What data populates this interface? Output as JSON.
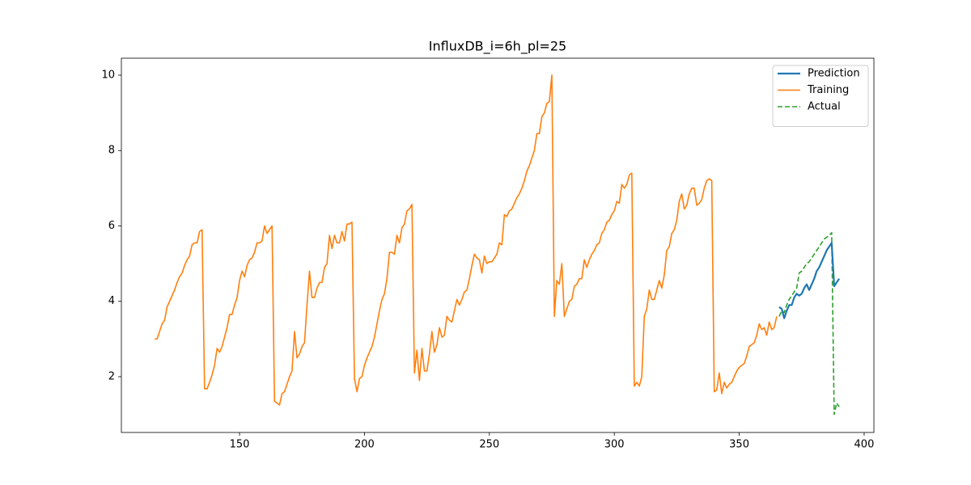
{
  "chart_data": {
    "type": "line",
    "title": "InfluxDB_i=6h_pl=25",
    "xlim": [
      102.7,
      403.9
    ],
    "ylim": [
      0.52,
      10.45
    ],
    "xticks": [
      150,
      200,
      250,
      300,
      350,
      400
    ],
    "yticks": [
      2,
      4,
      6,
      8,
      10
    ],
    "grid": false,
    "legend": "upper right",
    "series": [
      {
        "name": "Prediction",
        "color": "#1f77b4",
        "linestyle": "solid",
        "linewidth": 2.2,
        "x": [
          366,
          367,
          368,
          369,
          370,
          371,
          372,
          373,
          374,
          375,
          376,
          377,
          378,
          379,
          380,
          381,
          382,
          383,
          384,
          385,
          386,
          387,
          388,
          389,
          390
        ],
        "values": [
          3.85,
          3.8,
          3.55,
          3.75,
          3.9,
          3.9,
          4.1,
          4.2,
          4.15,
          4.2,
          4.35,
          4.45,
          4.3,
          4.45,
          4.6,
          4.8,
          4.9,
          5.05,
          5.2,
          5.35,
          5.45,
          5.55,
          4.4,
          4.5,
          4.6
        ]
      },
      {
        "name": "Training",
        "color": "#ff7f0e",
        "linestyle": "solid",
        "linewidth": 1.6,
        "x": [
          116,
          117,
          118,
          119,
          120,
          121,
          122,
          123,
          124,
          125,
          126,
          127,
          128,
          129,
          130,
          131,
          132,
          133,
          134,
          135,
          136,
          137,
          138,
          139,
          140,
          141,
          142,
          143,
          144,
          145,
          146,
          147,
          148,
          149,
          150,
          151,
          152,
          153,
          154,
          155,
          156,
          157,
          158,
          159,
          160,
          161,
          162,
          163,
          164,
          165,
          166,
          167,
          168,
          169,
          170,
          171,
          172,
          173,
          174,
          175,
          176,
          177,
          178,
          179,
          180,
          181,
          182,
          183,
          184,
          185,
          186,
          187,
          188,
          189,
          190,
          191,
          192,
          193,
          194,
          195,
          196,
          197,
          198,
          199,
          200,
          201,
          202,
          203,
          204,
          205,
          206,
          207,
          208,
          209,
          210,
          211,
          212,
          213,
          214,
          215,
          216,
          217,
          218,
          219,
          220,
          221,
          222,
          223,
          224,
          225,
          226,
          227,
          228,
          229,
          230,
          231,
          232,
          233,
          234,
          235,
          236,
          237,
          238,
          239,
          240,
          241,
          242,
          243,
          244,
          245,
          246,
          247,
          248,
          249,
          250,
          251,
          252,
          253,
          254,
          255,
          256,
          257,
          258,
          259,
          260,
          261,
          262,
          263,
          264,
          265,
          266,
          267,
          268,
          269,
          270,
          271,
          272,
          273,
          274,
          275,
          276,
          277,
          278,
          279,
          280,
          281,
          282,
          283,
          284,
          285,
          286,
          287,
          288,
          289,
          290,
          291,
          292,
          293,
          294,
          295,
          296,
          297,
          298,
          299,
          300,
          301,
          302,
          303,
          304,
          305,
          306,
          307,
          308,
          309,
          310,
          311,
          312,
          313,
          314,
          315,
          316,
          317,
          318,
          319,
          320,
          321,
          322,
          323,
          324,
          325,
          326,
          327,
          328,
          329,
          330,
          331,
          332,
          333,
          334,
          335,
          336,
          337,
          338,
          339,
          340,
          341,
          342,
          343,
          344,
          345,
          346,
          347,
          348,
          349,
          350,
          351,
          352,
          353,
          354,
          355,
          356,
          357,
          358,
          359,
          360,
          361,
          362,
          363,
          364,
          365
        ],
        "values": [
          3.0,
          3.0,
          3.2,
          3.4,
          3.5,
          3.85,
          4.0,
          4.15,
          4.3,
          4.5,
          4.65,
          4.75,
          4.95,
          5.1,
          5.2,
          5.5,
          5.55,
          5.55,
          5.85,
          5.9,
          1.68,
          1.68,
          1.85,
          2.05,
          2.3,
          2.75,
          2.65,
          2.8,
          3.05,
          3.3,
          3.65,
          3.65,
          3.9,
          4.1,
          4.55,
          4.8,
          4.65,
          4.95,
          5.1,
          5.15,
          5.3,
          5.55,
          5.55,
          5.6,
          6.0,
          5.8,
          5.9,
          6.0,
          1.35,
          1.3,
          1.25,
          1.55,
          1.6,
          1.8,
          2.0,
          2.15,
          3.2,
          2.5,
          2.6,
          2.8,
          2.9,
          3.9,
          4.8,
          4.1,
          4.1,
          4.35,
          4.5,
          4.5,
          4.9,
          5.0,
          5.75,
          5.4,
          5.75,
          5.55,
          5.55,
          5.85,
          5.6,
          6.05,
          6.05,
          6.1,
          1.95,
          1.6,
          1.95,
          2.0,
          2.3,
          2.5,
          2.65,
          2.8,
          3.05,
          3.4,
          3.75,
          4.05,
          4.2,
          4.6,
          5.3,
          5.3,
          5.25,
          5.75,
          5.55,
          5.95,
          6.05,
          6.4,
          6.45,
          6.57,
          2.1,
          2.7,
          1.9,
          2.75,
          2.15,
          2.15,
          2.6,
          3.2,
          2.65,
          2.85,
          3.3,
          3.05,
          3.1,
          3.6,
          3.5,
          3.45,
          3.75,
          4.05,
          3.9,
          4.05,
          4.25,
          4.3,
          4.6,
          4.95,
          5.25,
          5.15,
          5.1,
          4.75,
          5.2,
          5.0,
          5.05,
          5.05,
          5.15,
          5.25,
          5.55,
          5.5,
          6.3,
          6.25,
          6.4,
          6.45,
          6.6,
          6.75,
          6.85,
          7.0,
          7.2,
          7.45,
          7.6,
          7.8,
          8.0,
          8.45,
          8.45,
          8.9,
          9.0,
          9.25,
          9.3,
          10.0,
          3.6,
          4.55,
          4.45,
          5.0,
          3.6,
          3.8,
          4.0,
          4.05,
          4.4,
          4.45,
          4.6,
          4.6,
          5.1,
          4.9,
          5.1,
          5.25,
          5.35,
          5.5,
          5.55,
          5.8,
          5.9,
          6.1,
          6.15,
          6.3,
          6.4,
          6.65,
          6.6,
          7.1,
          7.0,
          7.1,
          7.35,
          7.4,
          1.75,
          1.85,
          1.75,
          2.0,
          3.6,
          3.8,
          4.3,
          4.05,
          4.05,
          4.3,
          4.55,
          4.35,
          4.7,
          5.35,
          5.45,
          5.8,
          5.9,
          6.15,
          6.65,
          6.85,
          6.45,
          6.55,
          6.85,
          7.0,
          7.0,
          6.55,
          6.6,
          6.7,
          7.0,
          7.2,
          7.25,
          7.2,
          1.6,
          1.65,
          2.1,
          1.55,
          1.85,
          1.7,
          1.8,
          1.85,
          2.0,
          2.15,
          2.25,
          2.3,
          2.35,
          2.55,
          2.8,
          2.85,
          2.9,
          3.1,
          3.4,
          3.25,
          3.3,
          3.1,
          3.45,
          3.25,
          3.3,
          3.6
        ]
      },
      {
        "name": "Actual",
        "color": "#2ca02c",
        "linestyle": "dashed",
        "linewidth": 1.6,
        "x": [
          366,
          367,
          368,
          369,
          370,
          371,
          372,
          373,
          374,
          375,
          376,
          377,
          378,
          379,
          380,
          381,
          382,
          383,
          384,
          385,
          386,
          387,
          388,
          389,
          390
        ],
        "values": [
          3.6,
          3.75,
          3.7,
          3.9,
          4.05,
          4.15,
          4.25,
          4.35,
          4.75,
          4.8,
          4.9,
          5.0,
          5.05,
          5.15,
          5.25,
          5.35,
          5.45,
          5.55,
          5.65,
          5.7,
          5.75,
          5.82,
          1.0,
          1.3,
          1.2
        ]
      }
    ],
    "draw_order": [
      1,
      2,
      0
    ]
  }
}
